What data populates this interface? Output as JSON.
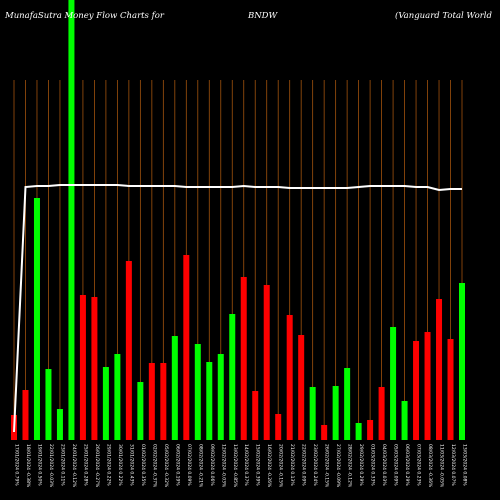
{
  "header": {
    "left": "MunafaSutra  Money Flow  Charts for",
    "center": "BNDW",
    "right": "(Vanguard Total World"
  },
  "colors": {
    "background": "#000000",
    "grid": "#a0520d",
    "up": "#00ff00",
    "down": "#ff0000",
    "line": "#ffffff"
  },
  "chart_data": {
    "type": "bar",
    "title": "",
    "xlabel": "",
    "ylabel": "",
    "ylim": [
      0,
      440
    ],
    "grid": true,
    "categories": [
      "17/01/2024",
      "18/01/2024",
      "19/01/2024",
      "22/01/2024",
      "23/01/2024",
      "24/01/2024",
      "25/01/2024",
      "26/01/2024",
      "29/01/2024",
      "30/01/2024",
      "31/01/2024",
      "01/02/2024",
      "02/02/2024",
      "05/02/2024",
      "06/02/2024",
      "07/02/2024",
      "08/02/2024",
      "09/02/2024",
      "12/02/2024",
      "13/02/2024",
      "14/02/2024",
      "15/02/2024",
      "16/02/2024",
      "20/02/2024",
      "21/02/2024",
      "22/02/2024",
      "23/02/2024",
      "26/02/2024",
      "27/02/2024",
      "28/02/2024",
      "29/02/2024",
      "01/03/2024",
      "04/03/2024",
      "05/03/2024",
      "06/03/2024",
      "07/03/2024",
      "08/03/2024",
      "11/03/2024",
      "12/03/2024",
      "13/03/2024"
    ],
    "tick_labels": [
      "17/01/2024 0.79%",
      "18/01/2024 -0.38%",
      "19/01/2024 0.50%",
      "22/01/2024 -0.03%",
      "23/01/2024 0.11%",
      "24/01/2024 -0.12%",
      "25/01/2024 0.28%",
      "26/01/2024 -0.27%",
      "29/01/2024 0.22%",
      "30/01/2024 0.22%",
      "31/01/2024 0.43%",
      "01/02/2024 0.35%",
      "02/02/2024 -0.37%",
      "05/02/2024 -0.32%",
      "06/02/2024 0.19%",
      "07/02/2024 0.09%",
      "08/02/2024 -0.21%",
      "09/02/2024 0.06%",
      "12/02/2024 -0.03%",
      "13/02/2024 -0.85%",
      "14/02/2024 0.37%",
      "15/02/2024 0.39%",
      "16/02/2024 -0.26%",
      "20/02/2024 -0.15%",
      "21/02/2024 0.13%",
      "22/02/2024 0.09%",
      "23/02/2024 0.24%",
      "26/02/2024 -0.15%",
      "27/02/2024 -0.09%",
      "28/02/2024 -0.12%",
      "29/02/2024 0.29%",
      "01/03/2024 0.33%",
      "04/03/2024 0.03%",
      "05/03/2024 0.09%",
      "06/03/2024 0.29%",
      "07/03/2024 0.23%",
      "08/03/2024 -0.36%",
      "11/03/2024 -0.05%",
      "12/03/2024 0.07%",
      "13/03/2024 0.08%"
    ],
    "series": [
      {
        "values": [
          25,
          50,
          242,
          71,
          31,
          440,
          145,
          143,
          73,
          86,
          179,
          58,
          77,
          77,
          104,
          185,
          96,
          78,
          86,
          126,
          163,
          49,
          155,
          26,
          125,
          105,
          53,
          15,
          54,
          72,
          17,
          20,
          53,
          113,
          39,
          99,
          108,
          141,
          101,
          157
        ],
        "direction": [
          "down",
          "down",
          "up",
          "up",
          "up",
          "up",
          "down",
          "down",
          "up",
          "up",
          "down",
          "up",
          "down",
          "down",
          "up",
          "down",
          "up",
          "up",
          "up",
          "up",
          "down",
          "down",
          "down",
          "down",
          "down",
          "down",
          "up",
          "down",
          "up",
          "up",
          "up",
          "down",
          "down",
          "up",
          "up",
          "down",
          "down",
          "down",
          "down",
          "up"
        ]
      }
    ],
    "line": {
      "values": [
        8,
        253,
        254,
        254,
        255,
        255,
        255,
        255,
        255,
        255,
        254,
        254,
        254,
        254,
        254,
        253,
        253,
        253,
        253,
        253,
        254,
        253,
        253,
        253,
        252,
        252,
        252,
        252,
        252,
        252,
        253,
        254,
        254,
        254,
        254,
        253,
        253,
        250,
        251,
        251
      ]
    }
  }
}
